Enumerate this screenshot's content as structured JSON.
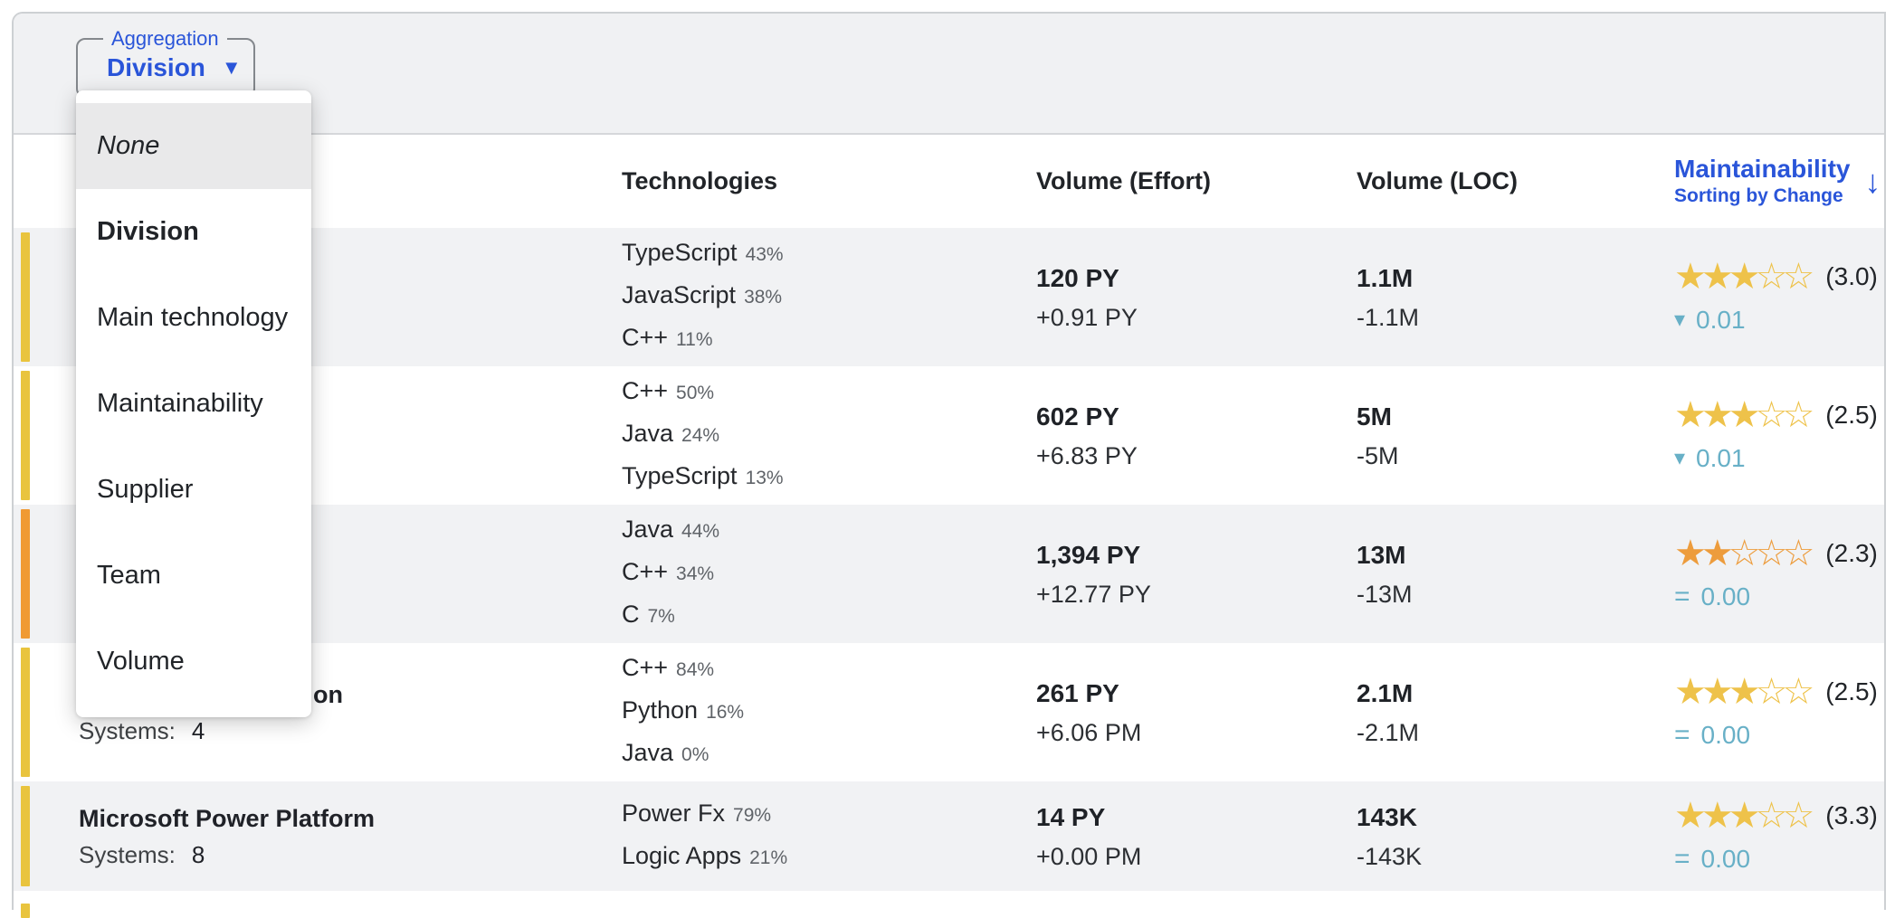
{
  "toolbar": {
    "aggregation_label": "Aggregation",
    "aggregation_value": "Division",
    "caret_icon": "▼"
  },
  "dropdown": {
    "items": [
      {
        "label": "None",
        "style": "italic",
        "highlighted": true
      },
      {
        "label": "Division",
        "style": "bold",
        "selected": true
      },
      {
        "label": "Main technology"
      },
      {
        "label": "Maintainability"
      },
      {
        "label": "Supplier"
      },
      {
        "label": "Team"
      },
      {
        "label": "Volume"
      }
    ]
  },
  "table": {
    "headers": {
      "technologies": "Technologies",
      "volume_effort": "Volume (Effort)",
      "volume_loc": "Volume (LOC)",
      "maintainability": "Maintainability",
      "sort_note": "Sorting by Change",
      "sort_icon": "↓"
    },
    "colors": {
      "accent_blue": "#2a55d9",
      "change_teal": "#68b0c7",
      "star_yellow": "#eec24a",
      "star_orange": "#ed9c3c",
      "bar_yellow": "#e9c43e",
      "bar_orange": "#f09a33"
    },
    "rows": [
      {
        "bar_color": "#e9c43e",
        "technologies": [
          {
            "name": "TypeScript",
            "pct": "43%"
          },
          {
            "name": "JavaScript",
            "pct": "38%"
          },
          {
            "name": "C++",
            "pct": "11%"
          }
        ],
        "effort": "120 PY",
        "effort_change": "+0.91 PY",
        "loc": "1.1M",
        "loc_change": "-1.1M",
        "stars_filled": "★★★",
        "stars_empty": "☆☆",
        "star_color": "#eec24a",
        "rating": "(3.0)",
        "change_icon": "▾",
        "change_value": "0.01"
      },
      {
        "bar_color": "#e9c43e",
        "technologies": [
          {
            "name": "C++",
            "pct": "50%"
          },
          {
            "name": "Java",
            "pct": "24%"
          },
          {
            "name": "TypeScript",
            "pct": "13%"
          }
        ],
        "effort": "602 PY",
        "effort_change": "+6.83 PY",
        "loc": "5M",
        "loc_change": "-5M",
        "stars_filled": "★★★",
        "stars_empty": "☆☆",
        "star_color": "#eec24a",
        "rating": "(2.5)",
        "change_icon": "▾",
        "change_value": "0.01"
      },
      {
        "bar_color": "#f09a33",
        "technologies": [
          {
            "name": "Java",
            "pct": "44%"
          },
          {
            "name": "C++",
            "pct": "34%"
          },
          {
            "name": "C",
            "pct": "7%"
          }
        ],
        "effort": "1,394 PY",
        "effort_change": "+12.77 PY",
        "loc": "13M",
        "loc_change": "-13M",
        "stars_filled": "★★",
        "stars_empty": "☆☆☆",
        "star_color": "#ed9c3c",
        "rating": "(2.3)",
        "change_icon": "=",
        "change_value": "0.00"
      },
      {
        "bar_color": "#e9c43e",
        "name_fragment": "on",
        "systems_label": "Systems:",
        "systems_value": "4",
        "technologies": [
          {
            "name": "C++",
            "pct": "84%"
          },
          {
            "name": "Python",
            "pct": "16%"
          },
          {
            "name": "Java",
            "pct": "0%"
          }
        ],
        "effort": "261 PY",
        "effort_change": "+6.06 PM",
        "loc": "2.1M",
        "loc_change": "-2.1M",
        "stars_filled": "★★★",
        "stars_empty": "☆☆",
        "star_color": "#eec24a",
        "rating": "(2.5)",
        "change_icon": "=",
        "change_value": "0.00"
      },
      {
        "bar_color": "#e9c43e",
        "name": "Microsoft Power Platform",
        "systems_label": "Systems:",
        "systems_value": "8",
        "technologies": [
          {
            "name": "Power Fx",
            "pct": "79%"
          },
          {
            "name": "Logic Apps",
            "pct": "21%"
          }
        ],
        "effort": "14 PY",
        "effort_change": "+0.00 PM",
        "loc": "143K",
        "loc_change": "-143K",
        "stars_filled": "★★★",
        "stars_empty": "☆☆",
        "star_color": "#eec24a",
        "rating": "(3.3)",
        "change_icon": "=",
        "change_value": "0.00"
      },
      {
        "bar_color": "#e9c43e"
      }
    ]
  }
}
